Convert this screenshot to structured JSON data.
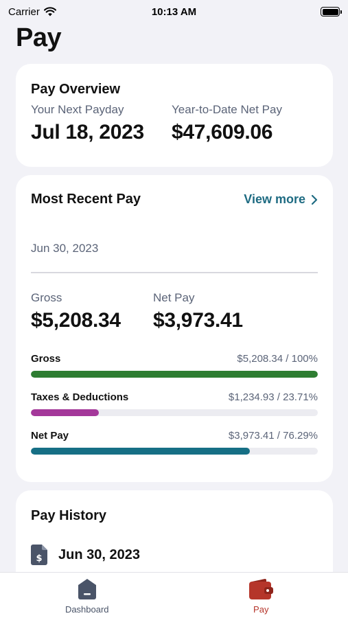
{
  "status_bar": {
    "carrier": "Carrier",
    "time": "10:13 AM"
  },
  "page": {
    "title": "Pay"
  },
  "overview": {
    "title": "Pay Overview",
    "next_payday_label": "Your Next Payday",
    "next_payday_value": "Jul 18, 2023",
    "ytd_label": "Year-to-Date Net Pay",
    "ytd_value": "$47,609.06"
  },
  "recent": {
    "title": "Most Recent Pay",
    "view_more": "View more",
    "date": "Jun 30, 2023",
    "gross_label": "Gross",
    "gross_value": "$5,208.34",
    "net_label": "Net Pay",
    "net_value": "$3,973.41",
    "bars": [
      {
        "name": "Gross",
        "value": "$5,208.34 / 100%",
        "percent": 100,
        "color": "#2e7d32"
      },
      {
        "name": "Taxes & Deductions",
        "value": "$1,234.93 / 23.71%",
        "percent": 23.71,
        "color": "#a4389a"
      },
      {
        "name": "Net Pay",
        "value": "$3,973.41 / 76.29%",
        "percent": 76.29,
        "color": "#166f85"
      }
    ]
  },
  "history": {
    "title": "Pay History",
    "items": [
      {
        "date": "Jun 30, 2023",
        "icon": "document-dollar-icon"
      }
    ]
  },
  "tabs": [
    {
      "label": "Dashboard",
      "icon": "dashboard-icon",
      "active": false,
      "color": "#4a5468"
    },
    {
      "label": "Pay",
      "icon": "wallet-icon",
      "active": true,
      "color": "#b5352a"
    }
  ]
}
